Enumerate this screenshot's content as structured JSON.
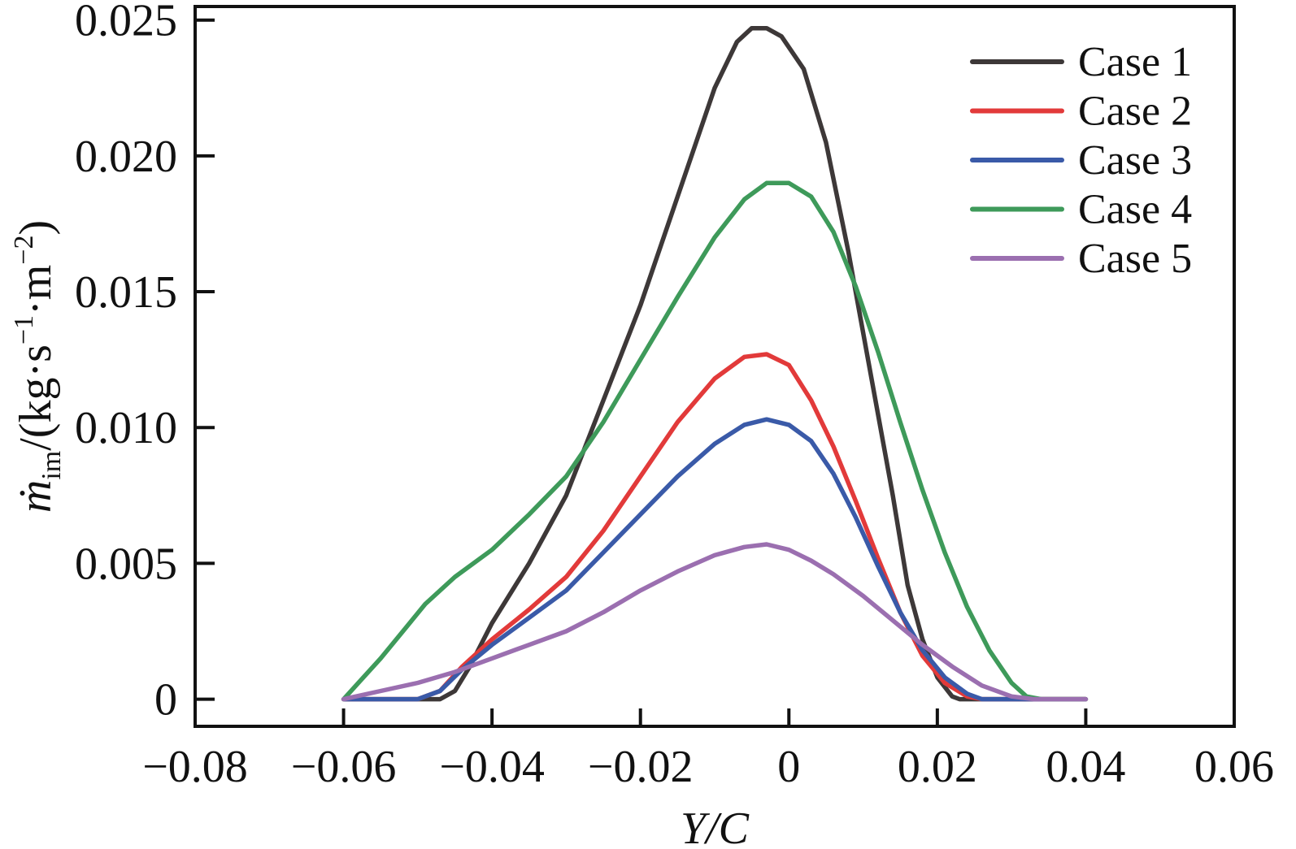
{
  "chart_data": {
    "type": "line",
    "xlabel": "Y/C",
    "ylabel_parts": {
      "symbol": "ṁ",
      "subscript": "im",
      "unit": "/(kg·s",
      "exp1": "−1",
      "mid": "·m",
      "exp2": "−2",
      "close": ")"
    },
    "xlim": [
      -0.08,
      0.06
    ],
    "ylim": [
      -0.001,
      0.0255
    ],
    "xticks": [
      -0.08,
      -0.06,
      -0.04,
      -0.02,
      0,
      0.02,
      0.04,
      0.06
    ],
    "xtick_labels": [
      "−0.08",
      "−0.06",
      "−0.04",
      "−0.02",
      "0",
      "0.02",
      "0.04",
      "0.06"
    ],
    "yticks": [
      0,
      0.005,
      0.01,
      0.015,
      0.02,
      0.025
    ],
    "ytick_labels": [
      "0",
      "0.005",
      "0.010",
      "0.015",
      "0.020",
      "0.025"
    ],
    "legend_position": "top-right",
    "grid": false,
    "series": [
      {
        "name": "Case 1",
        "color": "#3d3838",
        "points": [
          [
            -0.06,
            0
          ],
          [
            -0.047,
            0
          ],
          [
            -0.045,
            0.0003
          ],
          [
            -0.043,
            0.0012
          ],
          [
            -0.04,
            0.0028
          ],
          [
            -0.035,
            0.005
          ],
          [
            -0.03,
            0.0075
          ],
          [
            -0.025,
            0.011
          ],
          [
            -0.02,
            0.0145
          ],
          [
            -0.015,
            0.0185
          ],
          [
            -0.01,
            0.0225
          ],
          [
            -0.007,
            0.0242
          ],
          [
            -0.005,
            0.0247
          ],
          [
            -0.003,
            0.0247
          ],
          [
            -0.001,
            0.0244
          ],
          [
            0.002,
            0.0232
          ],
          [
            0.005,
            0.0205
          ],
          [
            0.008,
            0.0165
          ],
          [
            0.011,
            0.012
          ],
          [
            0.014,
            0.0075
          ],
          [
            0.016,
            0.0042
          ],
          [
            0.018,
            0.0022
          ],
          [
            0.02,
            0.0008
          ],
          [
            0.022,
            0.0001
          ],
          [
            0.023,
            0
          ],
          [
            0.04,
            0
          ]
        ]
      },
      {
        "name": "Case 2",
        "color": "#e23a3a",
        "points": [
          [
            -0.06,
            0
          ],
          [
            -0.05,
            0
          ],
          [
            -0.047,
            0.0003
          ],
          [
            -0.044,
            0.0012
          ],
          [
            -0.04,
            0.0022
          ],
          [
            -0.035,
            0.0033
          ],
          [
            -0.03,
            0.0045
          ],
          [
            -0.025,
            0.0062
          ],
          [
            -0.02,
            0.0082
          ],
          [
            -0.015,
            0.0102
          ],
          [
            -0.01,
            0.0118
          ],
          [
            -0.006,
            0.0126
          ],
          [
            -0.003,
            0.0127
          ],
          [
            0,
            0.0123
          ],
          [
            0.003,
            0.011
          ],
          [
            0.006,
            0.0093
          ],
          [
            0.009,
            0.0073
          ],
          [
            0.012,
            0.0052
          ],
          [
            0.015,
            0.0032
          ],
          [
            0.018,
            0.0016
          ],
          [
            0.021,
            0.0006
          ],
          [
            0.024,
            0.0001
          ],
          [
            0.026,
            0
          ],
          [
            0.04,
            0
          ]
        ]
      },
      {
        "name": "Case 3",
        "color": "#3a5aa8",
        "points": [
          [
            -0.06,
            0
          ],
          [
            -0.05,
            0
          ],
          [
            -0.047,
            0.0003
          ],
          [
            -0.044,
            0.0011
          ],
          [
            -0.04,
            0.002
          ],
          [
            -0.035,
            0.003
          ],
          [
            -0.03,
            0.004
          ],
          [
            -0.025,
            0.0054
          ],
          [
            -0.02,
            0.0068
          ],
          [
            -0.015,
            0.0082
          ],
          [
            -0.01,
            0.0094
          ],
          [
            -0.006,
            0.0101
          ],
          [
            -0.003,
            0.0103
          ],
          [
            0,
            0.0101
          ],
          [
            0.003,
            0.0095
          ],
          [
            0.006,
            0.0083
          ],
          [
            0.009,
            0.0067
          ],
          [
            0.012,
            0.0049
          ],
          [
            0.015,
            0.0032
          ],
          [
            0.018,
            0.0018
          ],
          [
            0.021,
            0.0008
          ],
          [
            0.024,
            0.0002
          ],
          [
            0.026,
            0
          ],
          [
            0.04,
            0
          ]
        ]
      },
      {
        "name": "Case 4",
        "color": "#3e9a5a",
        "points": [
          [
            -0.06,
            0
          ],
          [
            -0.058,
            0.0006
          ],
          [
            -0.055,
            0.0015
          ],
          [
            -0.052,
            0.0025
          ],
          [
            -0.049,
            0.0035
          ],
          [
            -0.045,
            0.0045
          ],
          [
            -0.04,
            0.0055
          ],
          [
            -0.035,
            0.0068
          ],
          [
            -0.03,
            0.0082
          ],
          [
            -0.025,
            0.0102
          ],
          [
            -0.02,
            0.0125
          ],
          [
            -0.015,
            0.0148
          ],
          [
            -0.01,
            0.017
          ],
          [
            -0.006,
            0.0184
          ],
          [
            -0.003,
            0.019
          ],
          [
            0,
            0.019
          ],
          [
            0.003,
            0.0185
          ],
          [
            0.006,
            0.0172
          ],
          [
            0.009,
            0.0152
          ],
          [
            0.012,
            0.0128
          ],
          [
            0.015,
            0.0102
          ],
          [
            0.018,
            0.0077
          ],
          [
            0.021,
            0.0054
          ],
          [
            0.024,
            0.0034
          ],
          [
            0.027,
            0.0018
          ],
          [
            0.03,
            0.0006
          ],
          [
            0.032,
            0.0001
          ],
          [
            0.034,
            0
          ],
          [
            0.04,
            0
          ]
        ]
      },
      {
        "name": "Case 5",
        "color": "#9b6fb0",
        "points": [
          [
            -0.06,
            0
          ],
          [
            -0.055,
            0.0003
          ],
          [
            -0.05,
            0.0006
          ],
          [
            -0.045,
            0.001
          ],
          [
            -0.04,
            0.0015
          ],
          [
            -0.035,
            0.002
          ],
          [
            -0.03,
            0.0025
          ],
          [
            -0.025,
            0.0032
          ],
          [
            -0.02,
            0.004
          ],
          [
            -0.015,
            0.0047
          ],
          [
            -0.01,
            0.0053
          ],
          [
            -0.006,
            0.0056
          ],
          [
            -0.003,
            0.0057
          ],
          [
            0,
            0.0055
          ],
          [
            0.003,
            0.0051
          ],
          [
            0.006,
            0.0046
          ],
          [
            0.01,
            0.0038
          ],
          [
            0.014,
            0.0029
          ],
          [
            0.018,
            0.002
          ],
          [
            0.022,
            0.0012
          ],
          [
            0.026,
            0.0005
          ],
          [
            0.03,
            0.0001
          ],
          [
            0.033,
            0
          ],
          [
            0.04,
            0
          ]
        ]
      }
    ]
  }
}
